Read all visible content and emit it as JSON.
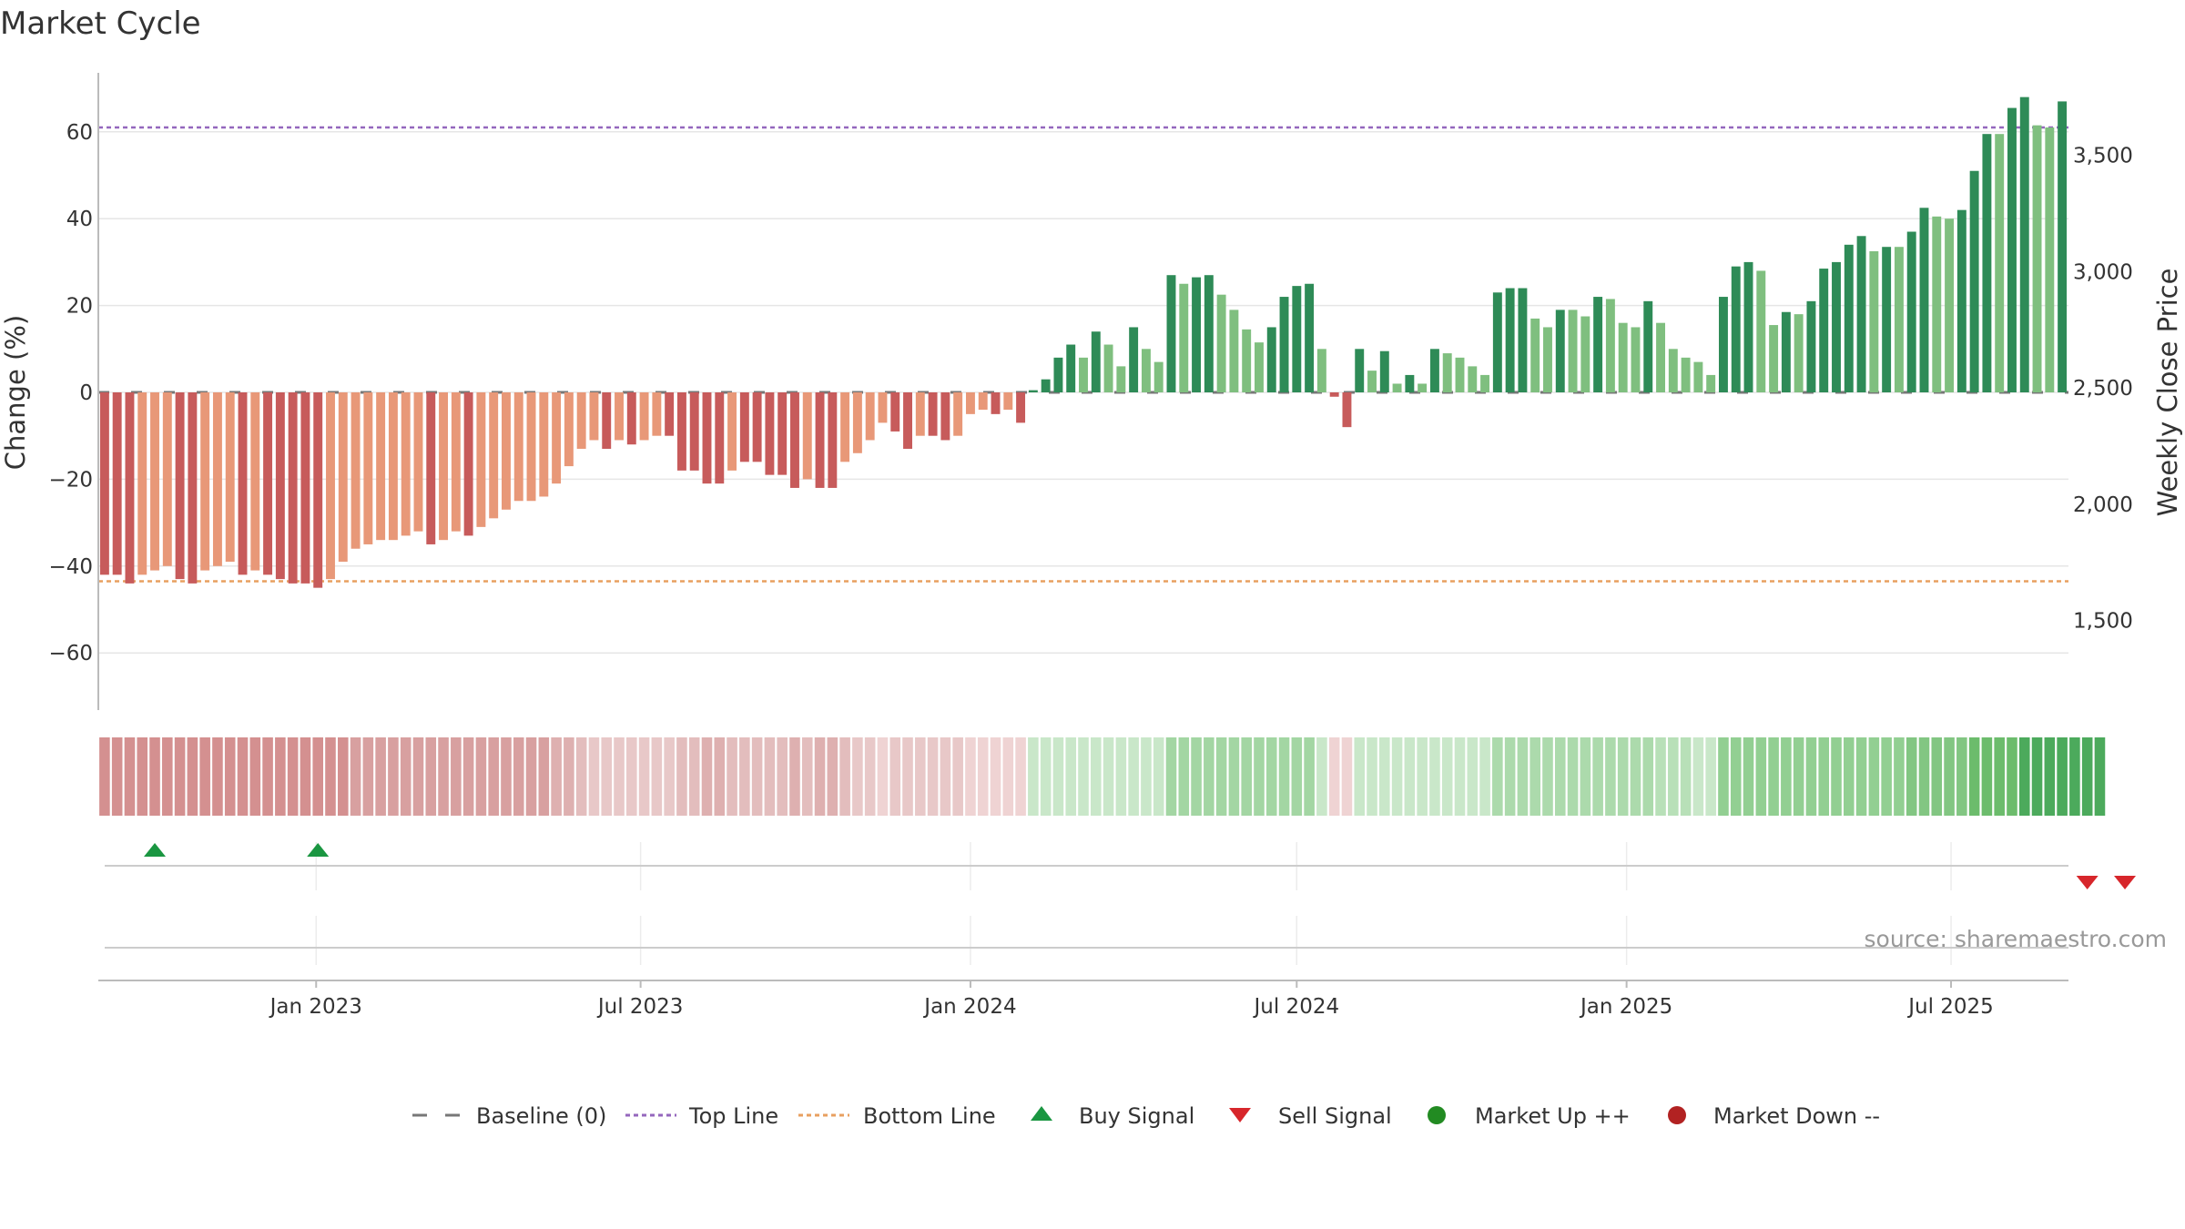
{
  "title": "Market Cycle",
  "source": "source: sharemaestro.com",
  "chart_data": {
    "type": "bar",
    "title": "Market Cycle",
    "ylabel": "Change (%)",
    "y2label": "Weekly Close Price",
    "ylim": [
      -73,
      73
    ],
    "y2ticks": [
      1500,
      2000,
      2500,
      3000,
      3500
    ],
    "yticks": [
      -60,
      -40,
      -20,
      0,
      20,
      40,
      60
    ],
    "top_line": 61,
    "bottom_line": -43.5,
    "start_date": "2022-09-05",
    "date_ticks": [
      {
        "date": "2023-01-01",
        "label": "Jan 2023"
      },
      {
        "date": "2023-07-01",
        "label": "Jul 2023"
      },
      {
        "date": "2024-01-01",
        "label": "Jan 2024"
      },
      {
        "date": "2024-07-01",
        "label": "Jul 2024"
      },
      {
        "date": "2025-01-01",
        "label": "Jan 2025"
      },
      {
        "date": "2025-07-01",
        "label": "Jul 2025"
      }
    ],
    "values": [
      -42,
      -42,
      -44,
      -42,
      -41,
      -40,
      -43,
      -44,
      -41,
      -40,
      -39,
      -42,
      -41,
      -42,
      -43,
      -44,
      -44,
      -45,
      -43,
      -39,
      -36,
      -35,
      -34,
      -34,
      -33,
      -32,
      -35,
      -34,
      -32,
      -33,
      -31,
      -29,
      -27,
      -25,
      -25,
      -24,
      -21,
      -17,
      -13,
      -11,
      -13,
      -11,
      -12,
      -11,
      -10,
      -10,
      -18,
      -18,
      -21,
      -21,
      -18,
      -16,
      -16,
      -19,
      -19,
      -22,
      -20,
      -22,
      -22,
      -16,
      -14,
      -11,
      -7,
      -9,
      -13,
      -10,
      -10,
      -11,
      -10,
      -5,
      -4,
      -5,
      -4,
      -7,
      0.5,
      3,
      8,
      11,
      8,
      14,
      11,
      6,
      15,
      10,
      7,
      27,
      25,
      26.5,
      27,
      22.5,
      19,
      14.5,
      11.5,
      15,
      22,
      24.5,
      25,
      10,
      -1,
      -8,
      10,
      5,
      9.5,
      2,
      4,
      2,
      10,
      9,
      8,
      6,
      4,
      23,
      24,
      24,
      17,
      15,
      19,
      19,
      17.5,
      22,
      21.5,
      16,
      15,
      21,
      16,
      10,
      8,
      7,
      4,
      22,
      29,
      30,
      28,
      15.5,
      18.5,
      18,
      21,
      28.5,
      30,
      34,
      36,
      32.5,
      33.5,
      33.5,
      37,
      42.5,
      40.5,
      40,
      42,
      51,
      59.5,
      59.5,
      65.5,
      68,
      61.5,
      61,
      67
    ],
    "bar_colors": [
      "#c75b5b",
      "#c75b5b",
      "#c75b5b",
      "#e89878",
      "#e89878",
      "#e89878",
      "#c75b5b",
      "#c75b5b",
      "#e89878",
      "#e89878",
      "#e89878",
      "#c75b5b",
      "#e89878",
      "#c75b5b",
      "#c75b5b",
      "#c75b5b",
      "#c75b5b",
      "#c75b5b",
      "#e89878",
      "#e89878",
      "#e89878",
      "#e89878",
      "#e89878",
      "#e89878",
      "#e89878",
      "#e89878",
      "#c75b5b",
      "#e89878",
      "#e89878",
      "#c75b5b",
      "#e89878",
      "#e89878",
      "#e89878",
      "#e89878",
      "#e89878",
      "#e89878",
      "#e89878",
      "#e89878",
      "#e89878",
      "#e89878",
      "#c75b5b",
      "#e89878",
      "#c75b5b",
      "#e89878",
      "#e89878",
      "#c75b5b",
      "#c75b5b",
      "#c75b5b",
      "#c75b5b",
      "#c75b5b",
      "#e89878",
      "#c75b5b",
      "#c75b5b",
      "#c75b5b",
      "#c75b5b",
      "#c75b5b",
      "#e89878",
      "#c75b5b",
      "#c75b5b",
      "#e89878",
      "#e89878",
      "#e89878",
      "#e89878",
      "#c75b5b",
      "#c75b5b",
      "#e89878",
      "#c75b5b",
      "#c75b5b",
      "#e89878",
      "#e89878",
      "#e89878",
      "#c75b5b",
      "#e89878",
      "#c75b5b",
      "#2e8b57",
      "#2e8b57",
      "#2e8b57",
      "#2e8b57",
      "#7fbf7f",
      "#2e8b57",
      "#7fbf7f",
      "#7fbf7f",
      "#2e8b57",
      "#7fbf7f",
      "#7fbf7f",
      "#2e8b57",
      "#7fbf7f",
      "#2e8b57",
      "#2e8b57",
      "#7fbf7f",
      "#7fbf7f",
      "#7fbf7f",
      "#7fbf7f",
      "#2e8b57",
      "#2e8b57",
      "#2e8b57",
      "#2e8b57",
      "#7fbf7f",
      "#c75b5b",
      "#c75b5b",
      "#2e8b57",
      "#7fbf7f",
      "#2e8b57",
      "#7fbf7f",
      "#2e8b57",
      "#7fbf7f",
      "#2e8b57",
      "#7fbf7f",
      "#7fbf7f",
      "#7fbf7f",
      "#7fbf7f",
      "#2e8b57",
      "#2e8b57",
      "#2e8b57",
      "#7fbf7f",
      "#7fbf7f",
      "#2e8b57",
      "#7fbf7f",
      "#7fbf7f",
      "#2e8b57",
      "#7fbf7f",
      "#7fbf7f",
      "#7fbf7f",
      "#2e8b57",
      "#7fbf7f",
      "#7fbf7f",
      "#7fbf7f",
      "#7fbf7f",
      "#7fbf7f",
      "#2e8b57",
      "#2e8b57",
      "#2e8b57",
      "#7fbf7f",
      "#7fbf7f",
      "#2e8b57",
      "#7fbf7f",
      "#2e8b57",
      "#2e8b57",
      "#2e8b57",
      "#2e8b57",
      "#2e8b57",
      "#7fbf7f",
      "#2e8b57",
      "#7fbf7f",
      "#2e8b57",
      "#2e8b57",
      "#7fbf7f",
      "#7fbf7f",
      "#2e8b57",
      "#2e8b57",
      "#2e8b57",
      "#7fbf7f",
      "#2e8b57",
      "#2e8b57",
      "#7fbf7f",
      "#7fbf7f",
      "#2e8b57"
    ],
    "strip_colors": [
      "#d49090",
      "#d49090",
      "#d49090",
      "#d49090",
      "#d49090",
      "#d49090",
      "#d49090",
      "#d49090",
      "#d49090",
      "#d49090",
      "#d49090",
      "#d49090",
      "#d49090",
      "#d49090",
      "#d49090",
      "#d49090",
      "#d49090",
      "#d49090",
      "#d49090",
      "#d49090",
      "#d8a0a0",
      "#d8a0a0",
      "#d8a0a0",
      "#d8a0a0",
      "#d8a0a0",
      "#d8a0a0",
      "#d8a0a0",
      "#d8a0a0",
      "#d8a0a0",
      "#d8a0a0",
      "#d8a0a0",
      "#d8a0a0",
      "#d8a0a0",
      "#d8a0a0",
      "#d8a0a0",
      "#d8a0a0",
      "#deb0b0",
      "#deb0b0",
      "#e3bdbd",
      "#e8c8c8",
      "#e8c8c8",
      "#e8c8c8",
      "#e8c8c8",
      "#e8c8c8",
      "#e8c8c8",
      "#e8c8c8",
      "#e3bdbd",
      "#e3bdbd",
      "#deb0b0",
      "#deb0b0",
      "#e3bdbd",
      "#e3bdbd",
      "#e3bdbd",
      "#e3bdbd",
      "#e3bdbd",
      "#deb0b0",
      "#e3bdbd",
      "#deb0b0",
      "#deb0b0",
      "#e3bdbd",
      "#e8c8c8",
      "#e8c8c8",
      "#efd3d3",
      "#e8c8c8",
      "#e8c8c8",
      "#e8c8c8",
      "#e8c8c8",
      "#e8c8c8",
      "#e8c8c8",
      "#efd3d3",
      "#efd3d3",
      "#efd3d3",
      "#efd3d3",
      "#efd3d3",
      "#c9e7c9",
      "#c9e7c9",
      "#c9e7c9",
      "#c9e7c9",
      "#c9e7c9",
      "#c9e7c9",
      "#c9e7c9",
      "#c9e7c9",
      "#c9e7c9",
      "#c9e7c9",
      "#c9e7c9",
      "#a3d6a3",
      "#a3d6a3",
      "#a3d6a3",
      "#a3d6a3",
      "#a3d6a3",
      "#a3d6a3",
      "#a3d6a3",
      "#a3d6a3",
      "#a3d6a3",
      "#a3d6a3",
      "#a3d6a3",
      "#a3d6a3",
      "#c9e7c9",
      "#efd3d3",
      "#efd3d3",
      "#c9e7c9",
      "#c9e7c9",
      "#c9e7c9",
      "#c9e7c9",
      "#c9e7c9",
      "#c9e7c9",
      "#c9e7c9",
      "#c9e7c9",
      "#c9e7c9",
      "#c9e7c9",
      "#c9e7c9",
      "#acdaac",
      "#acdaac",
      "#acdaac",
      "#acdaac",
      "#acdaac",
      "#acdaac",
      "#acdaac",
      "#acdaac",
      "#acdaac",
      "#acdaac",
      "#acdaac",
      "#acdaac",
      "#acdaac",
      "#b8e0b8",
      "#b8e0b8",
      "#b8e0b8",
      "#c9e7c9",
      "#c9e7c9",
      "#92cf92",
      "#92cf92",
      "#92cf92",
      "#92cf92",
      "#92cf92",
      "#92cf92",
      "#92cf92",
      "#92cf92",
      "#92cf92",
      "#92cf92",
      "#92cf92",
      "#92cf92",
      "#92cf92",
      "#92cf92",
      "#92cf92",
      "#82c682",
      "#82c682",
      "#82c682",
      "#82c682",
      "#82c682",
      "#6cbc6c",
      "#6cbc6c",
      "#6cbc6c",
      "#6cbc6c",
      "#4caa5c",
      "#4caa5c",
      "#4caa5c",
      "#4caa5c",
      "#4caa5c",
      "#4caa5c",
      "#4caa5c"
    ],
    "buy_signals": [
      "2022-10-03",
      "2023-01-02"
    ],
    "sell_signals": [
      "2025-09-15",
      "2025-10-06"
    ],
    "legend": [
      {
        "key": "baseline",
        "label": "Baseline (0)"
      },
      {
        "key": "top",
        "label": "Top Line"
      },
      {
        "key": "bottom",
        "label": "Bottom Line"
      },
      {
        "key": "buy",
        "label": "Buy Signal"
      },
      {
        "key": "sell",
        "label": "Sell Signal"
      },
      {
        "key": "up",
        "label": "Market Up ++"
      },
      {
        "key": "down",
        "label": "Market Down --"
      }
    ],
    "legend_placement": "bottom-center",
    "grid": true,
    "colors": {
      "top_line": "#9467bd",
      "bottom_line": "#e8a060",
      "buy": "#1a9641",
      "sell": "#d7262b",
      "up": "#228b22",
      "down": "#b22222",
      "baseline": "#777777"
    }
  }
}
